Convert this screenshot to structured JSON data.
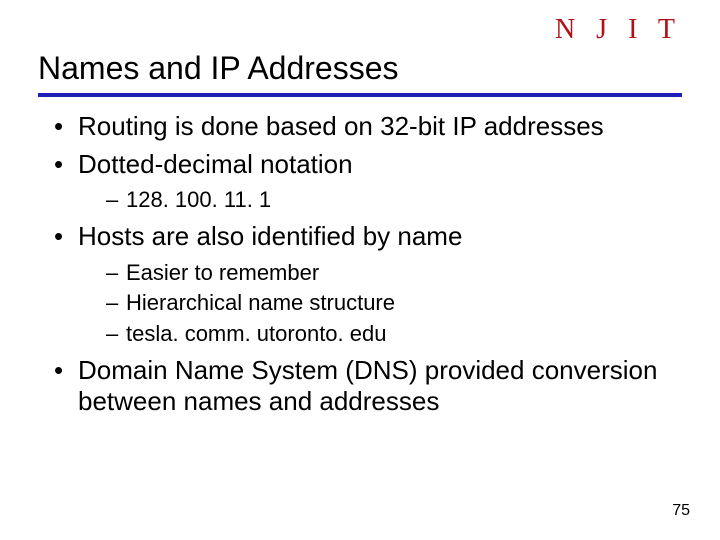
{
  "logo_text": "N J I T",
  "logo_color": "#b01116",
  "rule_color": "#1f1fb5",
  "title": "Names and IP Addresses",
  "bullets": [
    {
      "text": "Routing is done based on 32-bit IP addresses"
    },
    {
      "text": "Dotted-decimal notation",
      "sub": [
        {
          "text": "128. 100. 11. 1"
        }
      ]
    },
    {
      "text": "Hosts are also identified by name",
      "sub": [
        {
          "text": "Easier to remember"
        },
        {
          "text": "Hierarchical name structure"
        },
        {
          "text": "tesla. comm. utoronto. edu"
        }
      ]
    },
    {
      "text": "Domain Name System (DNS) provided conversion between names and addresses"
    }
  ],
  "page_number": "75"
}
